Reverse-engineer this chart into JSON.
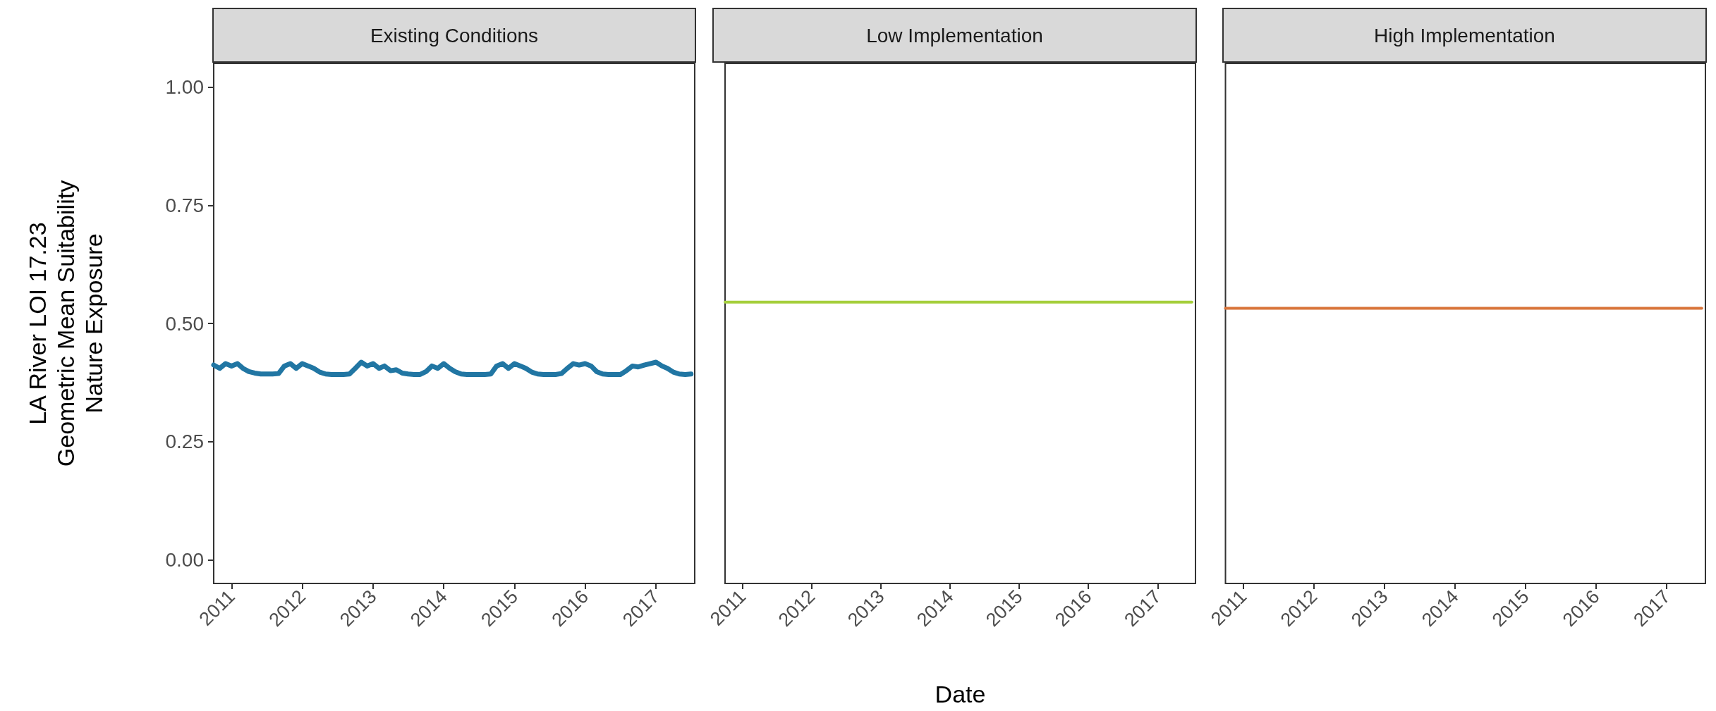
{
  "chart_data": [
    {
      "type": "line",
      "title": "Existing Conditions",
      "ylabel": "LA River LOI 17.23\nGeometric Mean Suitability\nNature Exposure",
      "xlim": [
        "2010-10-01",
        "2017-07-20"
      ],
      "xticks": [
        "2011",
        "2012",
        "2013",
        "2014",
        "2015",
        "2016",
        "2017"
      ],
      "ylim": [
        -0.05,
        1.05
      ],
      "yticks": [
        {
          "value": 0,
          "label": "0.00"
        },
        {
          "value": 0.25,
          "label": "0.25"
        },
        {
          "value": 0.5,
          "label": "0.50"
        },
        {
          "value": 0.75,
          "label": "0.75"
        },
        {
          "value": 1,
          "label": "1.00"
        }
      ],
      "grid": false,
      "marker": "none",
      "line_style": "solid",
      "series": [
        {
          "color": "#2176a3",
          "x": [
            "2010-10",
            "2010-11",
            "2010-12",
            "2011-01",
            "2011-02",
            "2011-03",
            "2011-04",
            "2011-05",
            "2011-06",
            "2011-07",
            "2011-08",
            "2011-09",
            "2011-10",
            "2011-11",
            "2011-12",
            "2012-01",
            "2012-02",
            "2012-03",
            "2012-04",
            "2012-05",
            "2012-06",
            "2012-07",
            "2012-08",
            "2012-09",
            "2012-10",
            "2012-11",
            "2012-12",
            "2013-01",
            "2013-02",
            "2013-03",
            "2013-04",
            "2013-05",
            "2013-06",
            "2013-07",
            "2013-08",
            "2013-09",
            "2013-10",
            "2013-11",
            "2013-12",
            "2014-01",
            "2014-02",
            "2014-03",
            "2014-04",
            "2014-05",
            "2014-06",
            "2014-07",
            "2014-08",
            "2014-09",
            "2014-10",
            "2014-11",
            "2014-12",
            "2015-01",
            "2015-02",
            "2015-03",
            "2015-04",
            "2015-05",
            "2015-06",
            "2015-07",
            "2015-08",
            "2015-09",
            "2015-10",
            "2015-11",
            "2015-12",
            "2016-01",
            "2016-02",
            "2016-03",
            "2016-04",
            "2016-05",
            "2016-06",
            "2016-07",
            "2016-08",
            "2016-09",
            "2016-10",
            "2016-11",
            "2016-12",
            "2017-01",
            "2017-02",
            "2017-03",
            "2017-04",
            "2017-05",
            "2017-06",
            "2017-07"
          ],
          "values": [
            0.412,
            0.405,
            0.415,
            0.41,
            0.415,
            0.405,
            0.398,
            0.395,
            0.393,
            0.393,
            0.393,
            0.394,
            0.41,
            0.415,
            0.405,
            0.415,
            0.41,
            0.405,
            0.397,
            0.393,
            0.392,
            0.392,
            0.392,
            0.393,
            0.405,
            0.418,
            0.41,
            0.415,
            0.405,
            0.41,
            0.4,
            0.402,
            0.395,
            0.393,
            0.392,
            0.392,
            0.398,
            0.41,
            0.405,
            0.415,
            0.405,
            0.398,
            0.393,
            0.392,
            0.392,
            0.392,
            0.392,
            0.393,
            0.41,
            0.415,
            0.405,
            0.415,
            0.41,
            0.405,
            0.397,
            0.393,
            0.392,
            0.392,
            0.392,
            0.394,
            0.405,
            0.415,
            0.412,
            0.415,
            0.41,
            0.398,
            0.393,
            0.392,
            0.392,
            0.392,
            0.4,
            0.41,
            0.408,
            0.412,
            0.415,
            0.418,
            0.41,
            0.405,
            0.397,
            0.393,
            0.392,
            0.393
          ]
        }
      ]
    },
    {
      "type": "line",
      "title": "Low Implementation",
      "xlabel": "Date",
      "xlim": [
        "2010-10-01",
        "2017-07-20"
      ],
      "xticks": [
        "2011",
        "2012",
        "2013",
        "2014",
        "2015",
        "2016",
        "2017"
      ],
      "ylim": [
        -0.05,
        1.05
      ],
      "tick_labels": "x",
      "grid": false,
      "marker": "none",
      "line_style": "solid",
      "series": [
        {
          "color": "#a5cf3c",
          "x": [
            "2010-10",
            "2017-07"
          ],
          "values": [
            0.545,
            0.545
          ]
        }
      ]
    },
    {
      "type": "line",
      "title": "High Implementation",
      "xlim": [
        "2010-10-01",
        "2017-07-20"
      ],
      "xticks": [
        "2011",
        "2012",
        "2013",
        "2014",
        "2015",
        "2016",
        "2017"
      ],
      "ylim": [
        -0.05,
        1.05
      ],
      "tick_labels": "x",
      "grid": false,
      "marker": "none",
      "line_style": "solid",
      "series": [
        {
          "color": "#d9743a",
          "x": [
            "2010-10",
            "2017-07"
          ],
          "values": [
            0.532,
            0.532
          ]
        }
      ]
    }
  ]
}
